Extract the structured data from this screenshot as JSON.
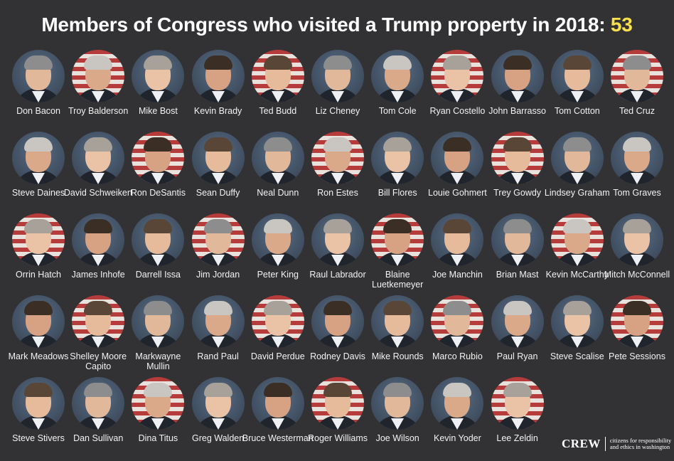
{
  "title": {
    "text": "Members of Congress who visited a Trump property in 2018:",
    "count": "53",
    "count_color": "#f6e04b"
  },
  "members": [
    [
      "Don",
      "Bacon"
    ],
    [
      "Troy",
      "Balderson"
    ],
    [
      "Mike",
      "Bost"
    ],
    [
      "Kevin",
      "Brady"
    ],
    [
      "Ted",
      "Budd"
    ],
    [
      "Liz",
      "Cheney"
    ],
    [
      "Tom",
      "Cole"
    ],
    [
      "Ryan",
      "Costello"
    ],
    [
      "John",
      "Barrasso"
    ],
    [
      "Tom",
      "Cotton"
    ],
    [
      "Ted",
      "Cruz"
    ],
    [
      "Steve",
      "Daines"
    ],
    [
      "David",
      "Schweikert"
    ],
    [
      "Ron",
      "DeSantis"
    ],
    [
      "Sean",
      "Duffy"
    ],
    [
      "Neal",
      "Dunn"
    ],
    [
      "Ron",
      "Estes"
    ],
    [
      "Bill",
      "Flores"
    ],
    [
      "Louie",
      "Gohmert"
    ],
    [
      "Trey",
      "Gowdy"
    ],
    [
      "Lindsey",
      "Graham"
    ],
    [
      "Tom",
      "Graves"
    ],
    [
      "Orrin",
      "Hatch"
    ],
    [
      "James",
      "Inhofe"
    ],
    [
      "Darrell",
      "Issa"
    ],
    [
      "Jim",
      "Jordan"
    ],
    [
      "Peter",
      "King"
    ],
    [
      "Raul",
      "Labrador"
    ],
    [
      "Blaine",
      "Luetkemeyer"
    ],
    [
      "Joe",
      "Manchin"
    ],
    [
      "Brian",
      "Mast"
    ],
    [
      "Kevin",
      "McCarthy"
    ],
    [
      "Mitch",
      "McConnell"
    ],
    [
      "Mark",
      "Meadows"
    ],
    [
      "Shelley Moore",
      "Capito"
    ],
    [
      "Markwayne",
      "Mullin"
    ],
    [
      "Rand",
      "Paul"
    ],
    [
      "David",
      "Perdue"
    ],
    [
      "Rodney",
      "Davis"
    ],
    [
      "Mike",
      "Rounds"
    ],
    [
      "Marco",
      "Rubio"
    ],
    [
      "Paul",
      "Ryan"
    ],
    [
      "Steve",
      "Scalise"
    ],
    [
      "Pete",
      "Sessions"
    ],
    [
      "Steve",
      "Stivers"
    ],
    [
      "Dan",
      "Sullivan"
    ],
    [
      "Dina",
      "Titus"
    ],
    [
      "Greg",
      "Walden"
    ],
    [
      "Bruce",
      "Westerman"
    ],
    [
      "Roger",
      "Williams"
    ],
    [
      "Joe",
      "Wilson"
    ],
    [
      "Kevin",
      "Yoder"
    ],
    [
      "Lee",
      "Zeldin"
    ]
  ],
  "logo": {
    "mark": "CREW",
    "tagline": "citizens for responsibility and ethics in washington"
  }
}
